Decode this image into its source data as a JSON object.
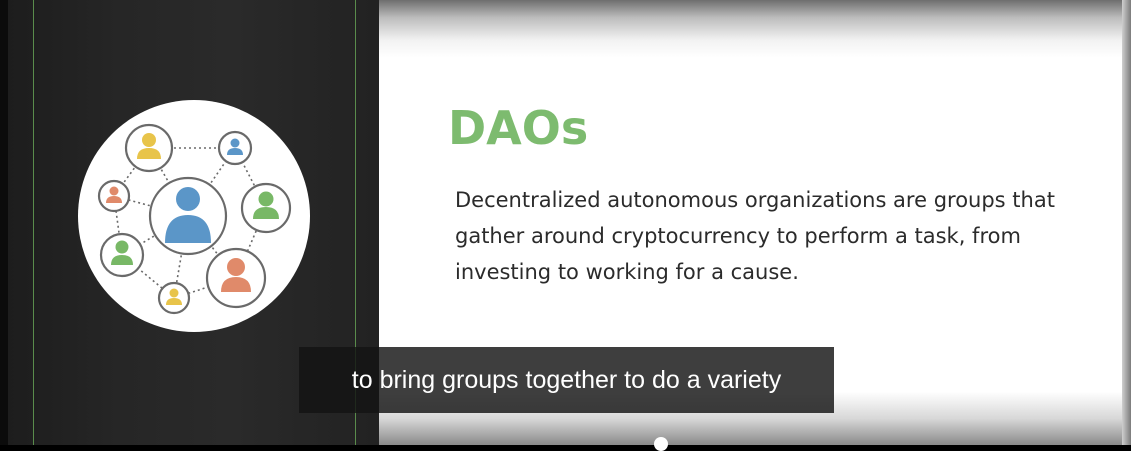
{
  "slide": {
    "title": "DAOs",
    "body": "Decentralized autonomous organizations are groups that gather around cryptocurrency to perform a task, from investing to working for a cause."
  },
  "caption": {
    "text": "to bring groups together to do a variety"
  },
  "graphic": {
    "icon": "user-network-icon"
  },
  "colors": {
    "title_green": "#7dbb6f",
    "person_blue": "#5b96c8",
    "person_green": "#78b866",
    "person_orange": "#e08a6a",
    "person_yellow": "#e8c44a"
  }
}
